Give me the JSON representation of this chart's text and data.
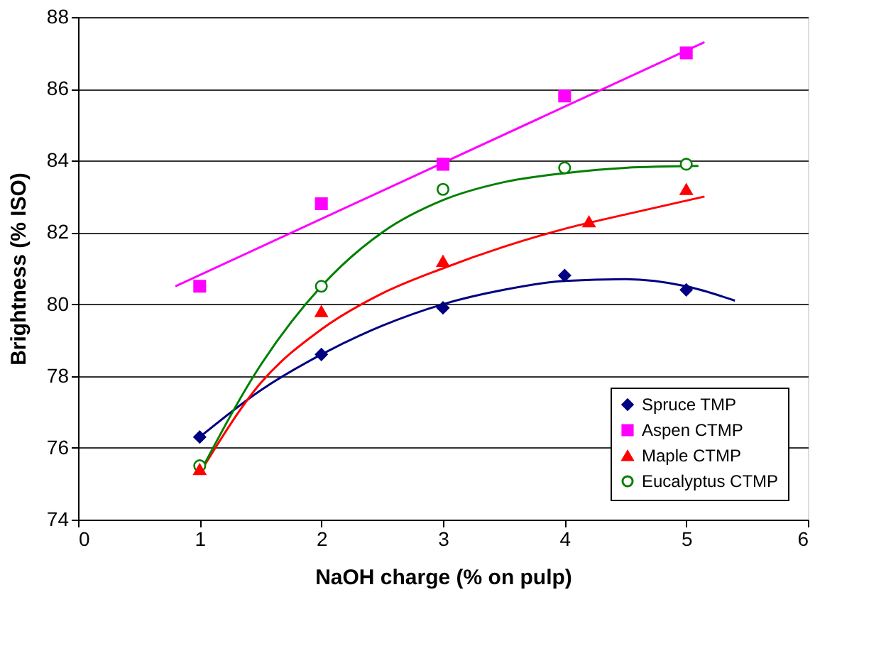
{
  "chart_data": {
    "type": "scatter",
    "xlabel": "NaOH charge (% on pulp)",
    "ylabel": "Brightness (% ISO)",
    "xlim": [
      0,
      6
    ],
    "xticks": [
      0,
      1,
      2,
      3,
      4,
      5,
      6
    ],
    "ylim": [
      74,
      88
    ],
    "yticks": [
      74,
      76,
      78,
      80,
      82,
      84,
      86,
      88
    ],
    "grid": "y",
    "legend": "bottom right",
    "series": [
      {
        "name": "Spruce TMP",
        "color": "#000080",
        "marker": "diamond",
        "x": [
          1,
          2,
          3,
          4,
          5
        ],
        "values": [
          76.3,
          78.6,
          79.9,
          80.8,
          80.4
        ]
      },
      {
        "name": "Aspen CTMP",
        "color": "#ff00ff",
        "marker": "square",
        "x": [
          1,
          2,
          3,
          4,
          5
        ],
        "values": [
          80.5,
          82.8,
          83.9,
          85.8,
          87.0
        ]
      },
      {
        "name": "Maple CTMP",
        "color": "#ff0000",
        "marker": "triangle",
        "x": [
          1,
          2,
          3,
          4.2,
          5
        ],
        "values": [
          75.4,
          79.8,
          81.2,
          82.3,
          83.2
        ]
      },
      {
        "name": "Eucalyptus CTMP",
        "color": "#008000",
        "marker": "circle",
        "x": [
          1,
          2,
          3,
          4,
          5
        ],
        "values": [
          75.5,
          80.5,
          83.2,
          83.8,
          83.9
        ]
      },
      {
        "type": "line",
        "color": "#000080",
        "x": [
          1,
          1.5,
          2,
          2.5,
          3,
          3.5,
          4,
          4.5,
          5,
          5.4
        ],
        "values": [
          76.3,
          77.6,
          78.6,
          79.4,
          80.0,
          80.4,
          80.65,
          80.7,
          80.5,
          80.1
        ]
      },
      {
        "type": "line",
        "color": "#ff00ff",
        "x": [
          0.8,
          5.15
        ],
        "values": [
          80.5,
          87.3
        ]
      },
      {
        "type": "line",
        "color": "#ff0000",
        "x": [
          1,
          1.5,
          2,
          2.5,
          3,
          3.5,
          4,
          4.5,
          5.15
        ],
        "values": [
          75.3,
          77.8,
          79.3,
          80.3,
          81.0,
          81.6,
          82.1,
          82.5,
          83.0
        ]
      },
      {
        "type": "line",
        "color": "#008000",
        "x": [
          1,
          1.5,
          2,
          2.5,
          3,
          3.5,
          4,
          4.5,
          5.1
        ],
        "values": [
          75.3,
          78.3,
          80.5,
          82.0,
          82.9,
          83.4,
          83.65,
          83.8,
          83.85
        ]
      }
    ]
  }
}
